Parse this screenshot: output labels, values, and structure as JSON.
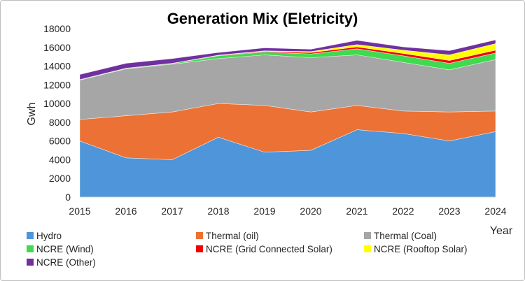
{
  "chart_data": {
    "type": "area",
    "stacked": true,
    "title": "Generation Mix (Eletricity)",
    "xlabel": "Year",
    "ylabel": "Gwh",
    "ylim": [
      0,
      18000
    ],
    "y_ticks": [
      "0",
      "2000",
      "4000",
      "6000",
      "8000",
      "10000",
      "12000",
      "14000",
      "16000",
      "18000"
    ],
    "y_tick_values": [
      0,
      2000,
      4000,
      6000,
      8000,
      10000,
      12000,
      14000,
      16000,
      18000
    ],
    "categories": [
      "2015",
      "2016",
      "2017",
      "2018",
      "2019",
      "2020",
      "2021",
      "2022",
      "2023",
      "2024"
    ],
    "legend_position": "bottom",
    "grid": false,
    "series": [
      {
        "name": "Hydro",
        "color": "#4e95d9",
        "values": [
          6000,
          4200,
          4000,
          6400,
          4800,
          5000,
          7200,
          6800,
          6000,
          7000
        ]
      },
      {
        "name": "Thermal (oil)",
        "color": "#eb7234",
        "values": [
          2300,
          4500,
          5100,
          3600,
          5000,
          4100,
          2600,
          2400,
          3100,
          2200
        ]
      },
      {
        "name": "Thermal (Coal)",
        "color": "#a6a6a6",
        "values": [
          4200,
          5000,
          5100,
          4800,
          5400,
          5800,
          5400,
          5200,
          4500,
          5500
        ]
      },
      {
        "name": "NCRE (Wind)",
        "color": "#40d94f",
        "values": [
          50,
          60,
          70,
          300,
          300,
          400,
          650,
          700,
          700,
          700
        ]
      },
      {
        "name": "NCRE (Grid Connected Solar)",
        "color": "#f20000",
        "values": [
          10,
          20,
          30,
          50,
          80,
          150,
          200,
          250,
          300,
          300
        ]
      },
      {
        "name": "NCRE (Rooftop Solar)",
        "color": "#ffff00",
        "values": [
          0,
          0,
          0,
          20,
          50,
          100,
          250,
          350,
          600,
          700
        ]
      },
      {
        "name": "NCRE (Other)",
        "color": "#7030a0",
        "values": [
          540,
          520,
          500,
          280,
          320,
          250,
          450,
          350,
          450,
          400
        ]
      }
    ]
  }
}
